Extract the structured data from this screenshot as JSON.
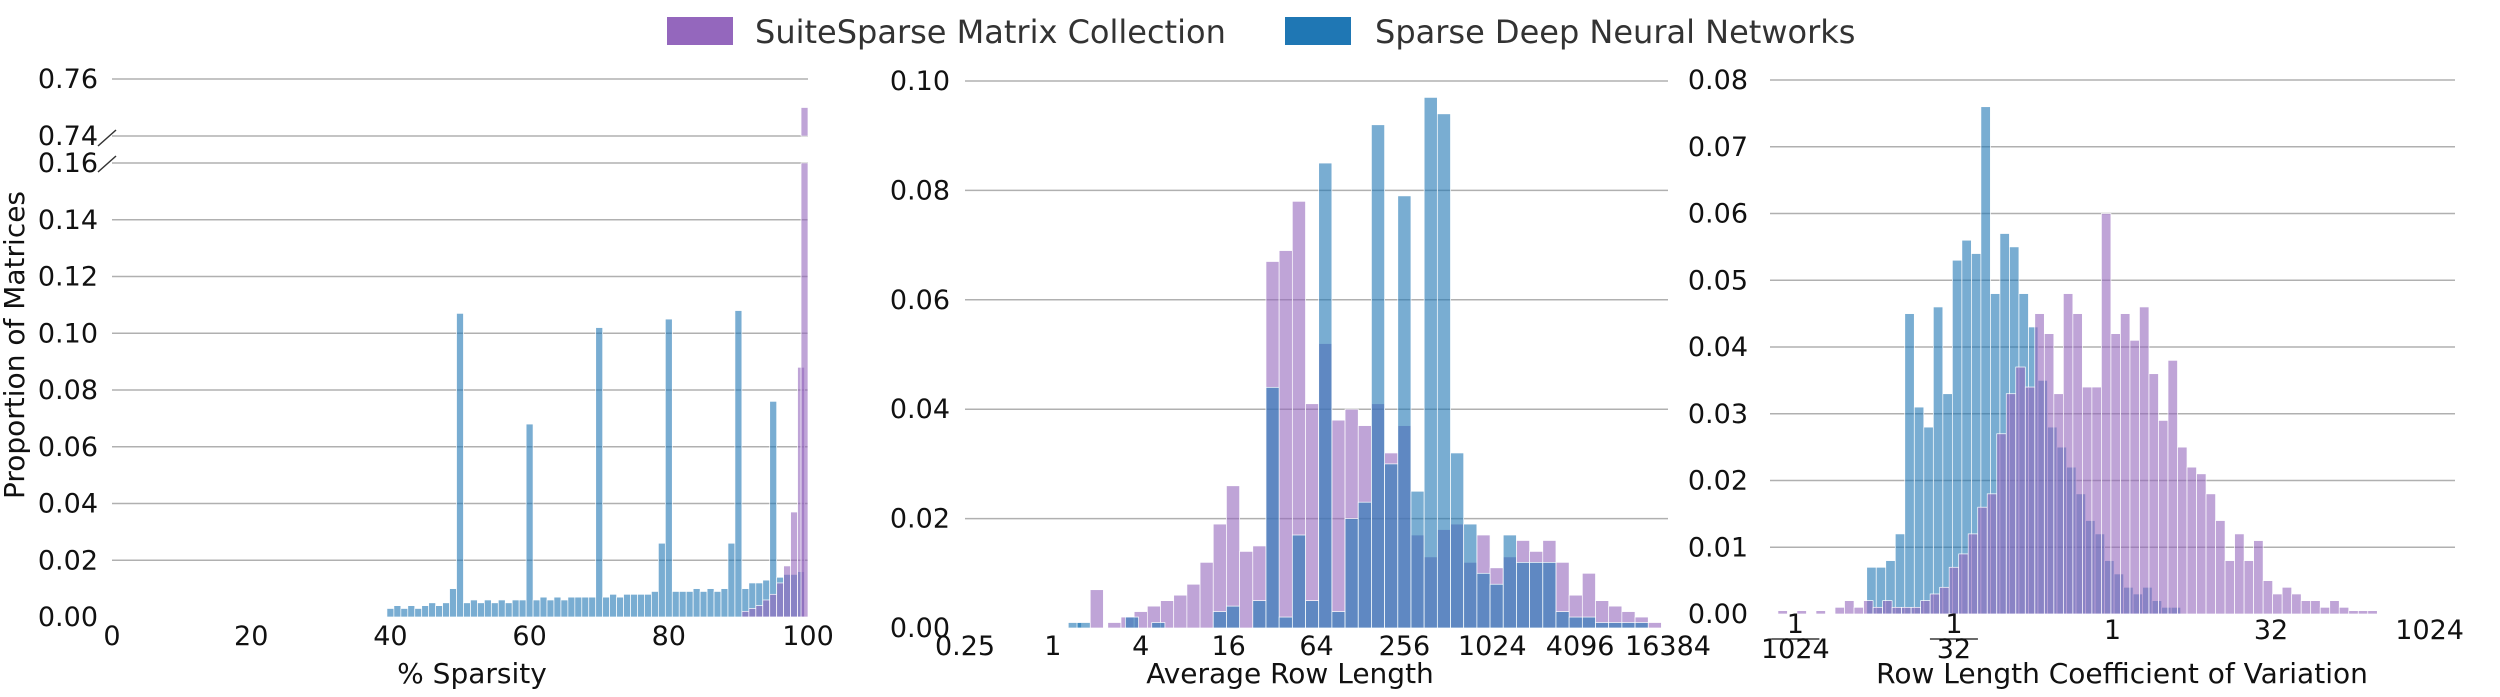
{
  "legend": [
    {
      "label": "SuiteSparse Matrix Collection",
      "color": "#9467bd"
    },
    {
      "label": "Sparse Deep Neural Networks",
      "color": "#1f77b4"
    }
  ],
  "chart_data": [
    {
      "type": "bar",
      "xlabel": "% Sparsity",
      "ylabel": "Proportion of Matrices",
      "xlim": [
        0,
        100
      ],
      "broken_y_axis": true,
      "ylim_lower": [
        0,
        0.16
      ],
      "ylim_upper": [
        0.74,
        0.76
      ],
      "xticks": [
        0,
        20,
        40,
        60,
        80,
        100
      ],
      "yticks_lower": [
        "0.00",
        "0.02",
        "0.04",
        "0.06",
        "0.08",
        "0.10",
        "0.12",
        "0.14",
        "0.16"
      ],
      "yticks_upper": [
        "0.74",
        "0.76"
      ],
      "grid": true,
      "legend_placement": "top-center",
      "series": [
        {
          "name": "Sparse Deep Neural Networks",
          "x": [
            40,
            41,
            42,
            43,
            44,
            45,
            46,
            47,
            48,
            49,
            50,
            51,
            52,
            53,
            54,
            55,
            56,
            57,
            58,
            59,
            60,
            61,
            62,
            63,
            64,
            65,
            66,
            67,
            68,
            69,
            70,
            71,
            72,
            73,
            74,
            75,
            76,
            77,
            78,
            79,
            80,
            81,
            82,
            83,
            84,
            85,
            86,
            87,
            88,
            89,
            90,
            91,
            92,
            93,
            94,
            95,
            96,
            97,
            98,
            99
          ],
          "values": [
            0.003,
            0.004,
            0.003,
            0.004,
            0.003,
            0.004,
            0.005,
            0.004,
            0.005,
            0.01,
            0.107,
            0.005,
            0.006,
            0.005,
            0.006,
            0.005,
            0.006,
            0.005,
            0.006,
            0.006,
            0.068,
            0.006,
            0.007,
            0.006,
            0.007,
            0.006,
            0.007,
            0.007,
            0.007,
            0.007,
            0.102,
            0.007,
            0.008,
            0.007,
            0.008,
            0.008,
            0.008,
            0.008,
            0.009,
            0.026,
            0.105,
            0.009,
            0.009,
            0.009,
            0.01,
            0.009,
            0.01,
            0.009,
            0.01,
            0.026,
            0.108,
            0.01,
            0.012,
            0.012,
            0.013,
            0.076,
            0.014,
            0.015,
            0.015,
            0.016
          ]
        },
        {
          "name": "SuiteSparse Matrix Collection",
          "x": [
            91,
            92,
            93,
            94,
            95,
            96,
            97,
            98,
            99
          ],
          "values": [
            0.002,
            0.003,
            0.004,
            0.006,
            0.008,
            0.012,
            0.018,
            0.037,
            0.088
          ],
          "top_bar": {
            "x": 99.5,
            "value": 0.75
          }
        }
      ]
    },
    {
      "type": "bar",
      "xlabel": "Average Row Length",
      "xscale": "log2",
      "xticks": [
        "0.25",
        "1",
        "4",
        "16",
        "64",
        "256",
        "1024",
        "4096",
        "16384"
      ],
      "ylim": [
        0,
        0.1
      ],
      "yticks": [
        "0.00",
        "0.02",
        "0.04",
        "0.06",
        "0.08",
        "0.10"
      ],
      "grid": true,
      "series": [
        {
          "name": "SuiteSparse Matrix Collection",
          "x": [
            1.0,
            1.4,
            1.7,
            2.0,
            2.3,
            2.6,
            2.9,
            3.2,
            3.5,
            3.8,
            4.1,
            4.4,
            4.7,
            5.0,
            5.3,
            5.6,
            5.9,
            6.2,
            6.5,
            6.8,
            7.1,
            7.4,
            7.7,
            8.0,
            8.3,
            8.6,
            8.9,
            9.2,
            9.5,
            9.8,
            10.1,
            10.4,
            10.7,
            11.0,
            11.3,
            11.6,
            11.9,
            12.2,
            12.5,
            12.8,
            13.1,
            13.4,
            13.7
          ],
          "values": [
            0.007,
            0.001,
            0.002,
            0.003,
            0.004,
            0.005,
            0.006,
            0.008,
            0.012,
            0.019,
            0.026,
            0.014,
            0.015,
            0.067,
            0.069,
            0.078,
            0.041,
            0.052,
            0.038,
            0.04,
            0.037,
            0.041,
            0.032,
            0.037,
            0.017,
            0.013,
            0.018,
            0.019,
            0.012,
            0.017,
            0.011,
            0.013,
            0.016,
            0.014,
            0.016,
            0.012,
            0.006,
            0.01,
            0.005,
            0.004,
            0.003,
            0.002,
            0.001
          ]
        },
        {
          "name": "Sparse Deep Neural Networks",
          "x": [
            0.5,
            0.7,
            1.8,
            2.4,
            3.8,
            4.1,
            4.7,
            5.0,
            5.3,
            5.6,
            5.9,
            6.2,
            6.5,
            6.8,
            7.1,
            7.4,
            7.7,
            8.0,
            8.3,
            8.6,
            8.9,
            9.2,
            9.5,
            9.8,
            10.1,
            10.4,
            10.7,
            11.0,
            11.3,
            11.6,
            11.9,
            12.2,
            12.5,
            12.8,
            13.1,
            13.4
          ],
          "values": [
            0.001,
            0.001,
            0.002,
            0.001,
            0.003,
            0.004,
            0.005,
            0.044,
            0.002,
            0.017,
            0.005,
            0.085,
            0.003,
            0.02,
            0.023,
            0.092,
            0.03,
            0.079,
            0.025,
            0.097,
            0.094,
            0.032,
            0.019,
            0.01,
            0.008,
            0.017,
            0.012,
            0.012,
            0.012,
            0.003,
            0.002,
            0.002,
            0.001,
            0.001,
            0.001,
            0.001
          ]
        }
      ]
    },
    {
      "type": "bar",
      "xlabel": "Row Length Coefficient of Variation",
      "xscale": "log2",
      "xticks": [
        "1/1024",
        "1/32",
        "1",
        "32",
        "1024"
      ],
      "ylim": [
        0,
        0.08
      ],
      "yticks": [
        "0.00",
        "0.01",
        "0.02",
        "0.03",
        "0.04",
        "0.05",
        "0.06",
        "0.07",
        "0.08"
      ],
      "grid": true,
      "series": [
        {
          "name": "Sparse Deep Neural Networks",
          "x": [
            -7.6,
            -7.3,
            -7.0,
            -6.7,
            -6.4,
            -6.1,
            -5.8,
            -5.5,
            -5.2,
            -4.9,
            -4.6,
            -4.3,
            -4.0,
            -3.7,
            -3.4,
            -3.1,
            -2.8,
            -2.5,
            -2.2,
            -1.9,
            -1.6,
            -1.3,
            -1.0,
            -0.7,
            -0.4,
            -0.1,
            0.2,
            0.5,
            0.8,
            1.1,
            1.4,
            1.7,
            2.0
          ],
          "values": [
            0.007,
            0.007,
            0.008,
            0.012,
            0.045,
            0.031,
            0.028,
            0.046,
            0.033,
            0.053,
            0.056,
            0.054,
            0.076,
            0.048,
            0.057,
            0.055,
            0.048,
            0.043,
            0.035,
            0.028,
            0.025,
            0.022,
            0.018,
            0.014,
            0.012,
            0.008,
            0.006,
            0.004,
            0.003,
            0.004,
            0.002,
            0.001,
            0.001
          ]
        },
        {
          "name": "SuiteSparse Matrix Collection",
          "x": [
            -10.4,
            -9.8,
            -9.2,
            -8.6,
            -8.3,
            -8.0,
            -7.7,
            -7.4,
            -7.1,
            -6.8,
            -6.5,
            -6.2,
            -5.9,
            -5.6,
            -5.3,
            -5.0,
            -4.7,
            -4.4,
            -4.1,
            -3.8,
            -3.5,
            -3.2,
            -2.9,
            -2.6,
            -2.3,
            -2.0,
            -1.7,
            -1.4,
            -1.1,
            -0.8,
            -0.5,
            -0.2,
            0.1,
            0.4,
            0.7,
            1.0,
            1.3,
            1.6,
            1.9,
            2.2,
            2.5,
            2.8,
            3.1,
            3.4,
            3.7,
            4.0,
            4.3,
            4.6,
            4.9,
            5.2,
            5.5,
            5.8,
            6.1,
            6.4,
            6.7,
            7.0,
            7.3,
            7.6,
            7.9,
            8.2
          ],
          "values": [
            0.0005,
            0.0005,
            0.0005,
            0.001,
            0.002,
            0.001,
            0.002,
            0.001,
            0.002,
            0.001,
            0.001,
            0.001,
            0.002,
            0.003,
            0.004,
            0.007,
            0.009,
            0.012,
            0.016,
            0.018,
            0.027,
            0.033,
            0.037,
            0.034,
            0.045,
            0.042,
            0.033,
            0.048,
            0.045,
            0.034,
            0.034,
            0.06,
            0.042,
            0.045,
            0.041,
            0.046,
            0.036,
            0.029,
            0.038,
            0.025,
            0.022,
            0.021,
            0.018,
            0.014,
            0.008,
            0.012,
            0.008,
            0.011,
            0.005,
            0.003,
            0.004,
            0.003,
            0.002,
            0.002,
            0.001,
            0.002,
            0.001,
            0.0005,
            0.0005,
            0.0005
          ]
        }
      ]
    }
  ]
}
